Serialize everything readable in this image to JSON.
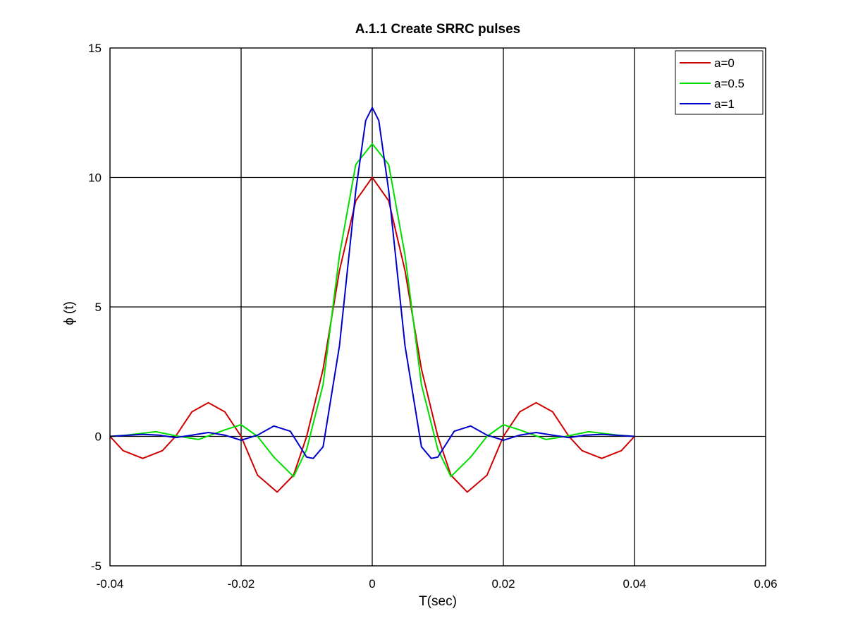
{
  "chart_data": {
    "type": "line",
    "title": "A.1.1 Create SRRC pulses",
    "xlabel": "T(sec)",
    "ylabel": "ϕ (t)",
    "xlim": [
      -0.04,
      0.06
    ],
    "ylim": [
      -5,
      15
    ],
    "xticks": [
      -0.04,
      -0.02,
      0,
      0.02,
      0.04,
      0.06
    ],
    "xtick_labels": [
      "-0.04",
      "-0.02",
      "0",
      "0.02",
      "0.04",
      "0.06"
    ],
    "yticks": [
      -5,
      0,
      5,
      10,
      15
    ],
    "ytick_labels": [
      "-5",
      "0",
      "5",
      "10",
      "15"
    ],
    "grid": true,
    "legend_position": "top-right",
    "series": [
      {
        "name": "a=0",
        "color": "#cc0000",
        "x": [
          -0.04,
          -0.038,
          -0.035,
          -0.032,
          -0.03,
          -0.0275,
          -0.025,
          -0.0225,
          -0.02,
          -0.0175,
          -0.0145,
          -0.012,
          -0.01,
          -0.0075,
          -0.005,
          -0.0025,
          0,
          0.0025,
          0.005,
          0.0075,
          0.01,
          0.012,
          0.0145,
          0.0175,
          0.02,
          0.0225,
          0.025,
          0.0275,
          0.03,
          0.032,
          0.035,
          0.038,
          0.04
        ],
        "y": [
          0,
          -0.55,
          -0.85,
          -0.55,
          0,
          0.95,
          1.3,
          0.95,
          0,
          -1.5,
          -2.15,
          -1.5,
          0,
          2.6,
          6.4,
          9.1,
          10,
          9.1,
          6.4,
          2.6,
          0,
          -1.5,
          -2.15,
          -1.5,
          0,
          0.95,
          1.3,
          0.95,
          0,
          -0.55,
          -0.85,
          -0.55,
          0
        ]
      },
      {
        "name": "a=0.5",
        "color": "#00dd00",
        "x": [
          -0.04,
          -0.0375,
          -0.033,
          -0.0295,
          -0.0265,
          -0.0225,
          -0.02,
          -0.0175,
          -0.015,
          -0.012,
          -0.01,
          -0.0075,
          -0.005,
          -0.0025,
          0,
          0.0025,
          0.005,
          0.0075,
          0.01,
          0.012,
          0.015,
          0.0175,
          0.02,
          0.0225,
          0.0265,
          0.0295,
          0.033,
          0.0375,
          0.04
        ],
        "y": [
          0,
          0.05,
          0.18,
          0,
          -0.12,
          0.25,
          0.45,
          0,
          -0.8,
          -1.55,
          -0.5,
          2.0,
          7.0,
          10.5,
          11.3,
          10.5,
          7.0,
          2.0,
          -0.5,
          -1.55,
          -0.8,
          0,
          0.45,
          0.25,
          -0.12,
          0,
          0.18,
          0.05,
          0
        ]
      },
      {
        "name": "a=1",
        "color": "#0000cc",
        "x": [
          -0.04,
          -0.035,
          -0.0325,
          -0.03,
          -0.0275,
          -0.025,
          -0.0225,
          -0.02,
          -0.0175,
          -0.015,
          -0.0125,
          -0.01,
          -0.009,
          -0.0075,
          -0.005,
          -0.0025,
          -0.001,
          0,
          0.001,
          0.0025,
          0.005,
          0.0075,
          0.009,
          0.01,
          0.0125,
          0.015,
          0.0175,
          0.02,
          0.0225,
          0.025,
          0.0275,
          0.03,
          0.0325,
          0.035,
          0.04
        ],
        "y": [
          0,
          0.08,
          0.05,
          -0.05,
          0.05,
          0.15,
          0.05,
          -0.15,
          0.05,
          0.4,
          0.2,
          -0.8,
          -0.85,
          -0.4,
          3.5,
          9.5,
          12.2,
          12.7,
          12.2,
          9.5,
          3.5,
          -0.4,
          -0.85,
          -0.8,
          0.2,
          0.4,
          0.05,
          -0.15,
          0.05,
          0.15,
          0.05,
          -0.05,
          0.05,
          0.08,
          0
        ]
      }
    ]
  }
}
